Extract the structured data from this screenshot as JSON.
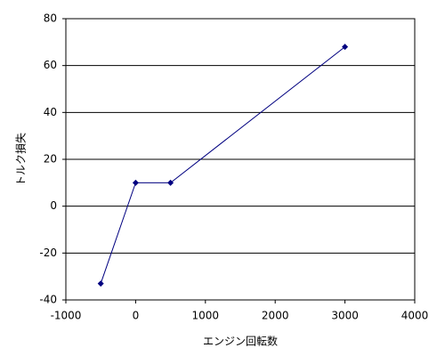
{
  "chart_data": {
    "type": "line",
    "x": [
      -500,
      0,
      500,
      3000
    ],
    "values": [
      -33,
      10,
      10,
      68
    ],
    "color": "#000080",
    "xlabel": "エンジン回転数",
    "ylabel": "トルク損失",
    "xlim": [
      -1000,
      4000
    ],
    "xticks": [
      -1000,
      0,
      1000,
      2000,
      3000,
      4000
    ],
    "ylim": [
      -40,
      80
    ],
    "yticks": [
      -40,
      -20,
      0,
      20,
      40,
      60,
      80
    ],
    "grid": true
  }
}
